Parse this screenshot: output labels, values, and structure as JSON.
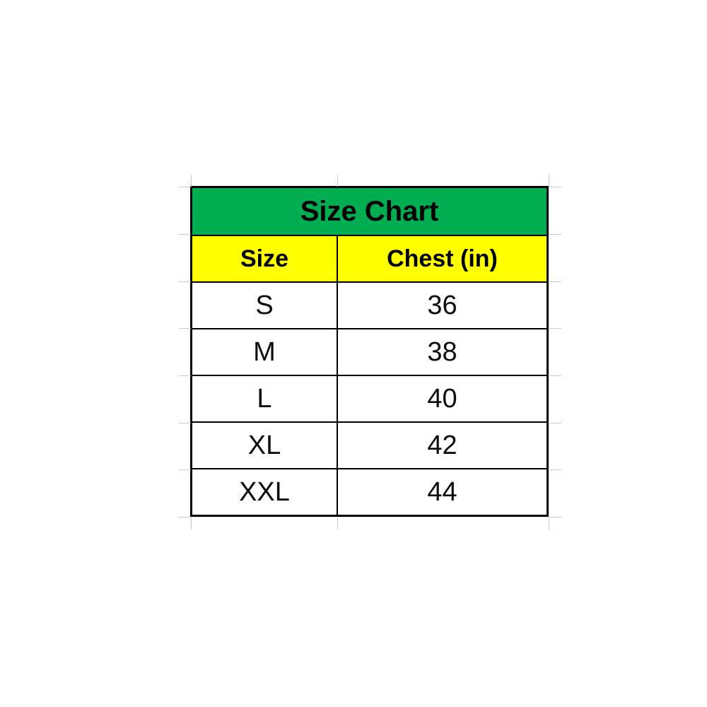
{
  "chart_data": {
    "type": "table",
    "title": "Size Chart",
    "columns": [
      "Size",
      "Chest (in)"
    ],
    "rows": [
      [
        "S",
        "36"
      ],
      [
        "M",
        "38"
      ],
      [
        "L",
        "40"
      ],
      [
        "XL",
        "42"
      ],
      [
        "XXL",
        "44"
      ]
    ]
  },
  "colors": {
    "title_background": "#00AD50",
    "header_background": "#FFFF00",
    "border": "#000000",
    "text": "#000000",
    "gridline": "#C9C9C9",
    "page_background": "#FFFFFF"
  }
}
